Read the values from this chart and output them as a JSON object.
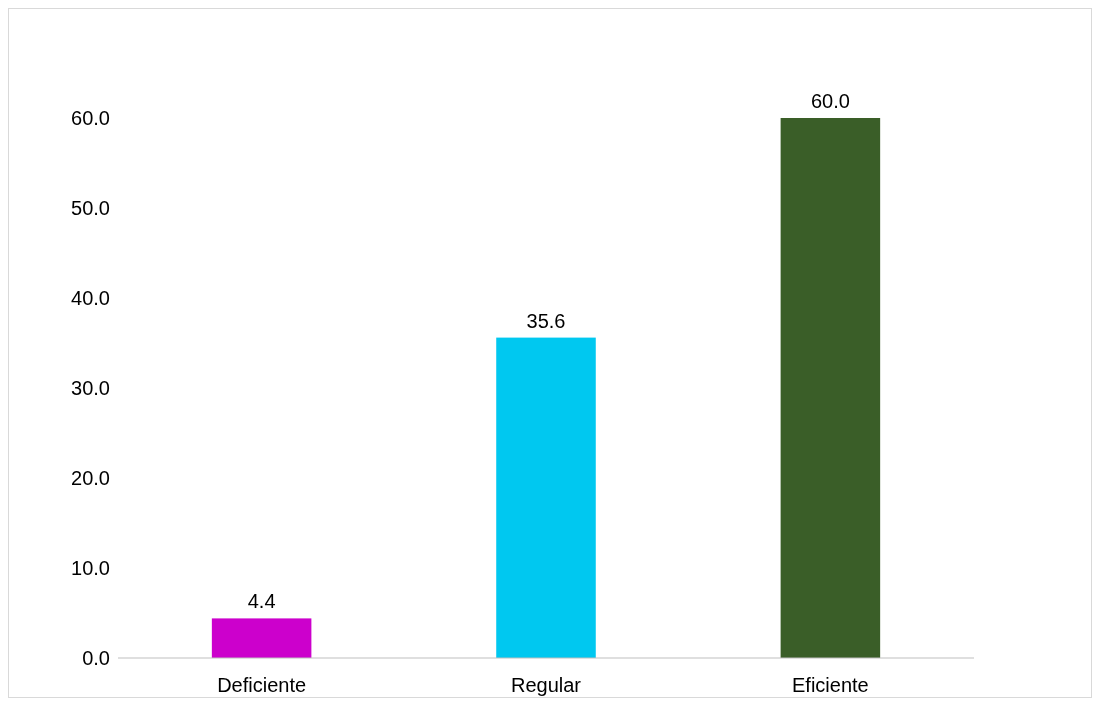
{
  "chart_data": {
    "type": "bar",
    "categories": [
      "Deficiente",
      "Regular",
      "Eficiente"
    ],
    "values": [
      4.4,
      35.6,
      60.0
    ],
    "colors": [
      "#cc00cc",
      "#00c8f0",
      "#3a5e28"
    ],
    "value_labels": [
      "4.4",
      "35.6",
      "60.0"
    ],
    "ylim": [
      0,
      60
    ],
    "yticks": [
      {
        "value": 0,
        "label": "0.0"
      },
      {
        "value": 10,
        "label": "10.0"
      },
      {
        "value": 20,
        "label": "20.0"
      },
      {
        "value": 30,
        "label": "30.0"
      },
      {
        "value": 40,
        "label": "40.0"
      },
      {
        "value": 50,
        "label": "50.0"
      },
      {
        "value": 60,
        "label": "60.0"
      }
    ],
    "grid": false
  }
}
